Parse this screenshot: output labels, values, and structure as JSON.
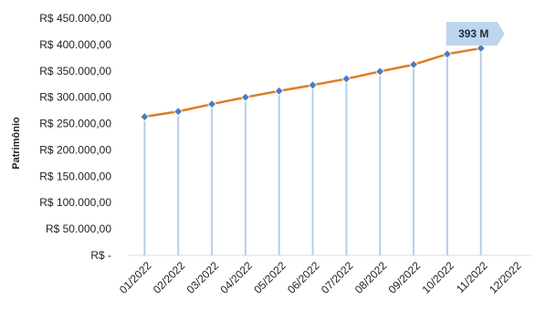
{
  "chart_data": {
    "type": "line",
    "title": "",
    "xlabel": "",
    "ylabel": "Patrimônio",
    "categories": [
      "01/2022",
      "02/2022",
      "03/2022",
      "04/2022",
      "05/2022",
      "06/2022",
      "07/2022",
      "08/2022",
      "09/2022",
      "10/2022",
      "11/2022",
      "12/2022"
    ],
    "series": [
      {
        "values": [
          263000,
          273000,
          287000,
          300000,
          312000,
          323000,
          335000,
          349000,
          362000,
          382000,
          393000,
          null
        ]
      }
    ],
    "ylim": [
      0,
      450000
    ],
    "y_ticks": [
      0,
      50000,
      100000,
      150000,
      200000,
      250000,
      300000,
      350000,
      400000,
      450000
    ],
    "y_tick_labels": [
      "R$ -",
      "R$ 50.000,00",
      "R$ 100.000,00",
      "R$ 150.000,00",
      "R$ 200.000,00",
      "R$ 250.000,00",
      "R$ 300.000,00",
      "R$ 350.000,00",
      "R$ 400.000,00",
      "R$ 450.000,00"
    ],
    "annotation": {
      "text": "393 M",
      "point_index": 10
    },
    "grid": false,
    "drop_lines": true,
    "colors": {
      "line": "#e07b22",
      "marker": "#4a7ebb",
      "drop_line": "#b8cde8",
      "callout_fill": "#bdd5ef",
      "axis": "#d9d9d9"
    }
  }
}
